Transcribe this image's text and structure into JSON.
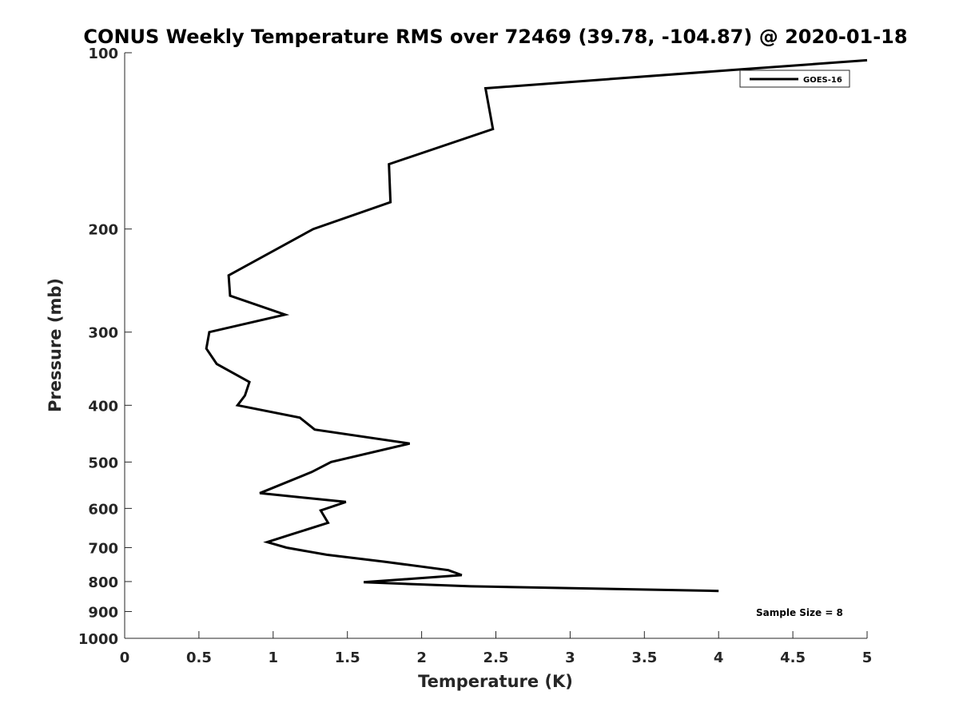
{
  "chart_data": {
    "type": "line",
    "title": "CONUS Weekly Temperature RMS over 72469 (39.78, -104.87) @ 2020-01-18",
    "xlabel": "Temperature (K)",
    "ylabel": "Pressure (mb)",
    "xlim": [
      0,
      5
    ],
    "ylim": [
      1000,
      100
    ],
    "y_scale": "log",
    "y_reversed": true,
    "grid": false,
    "legend_position": "top-right",
    "x_ticks": [
      "0",
      "0.5",
      "1",
      "1.5",
      "2",
      "2.5",
      "3",
      "3.5",
      "4",
      "4.5",
      "5"
    ],
    "y_ticks": [
      "100",
      "200",
      "300",
      "400",
      "500",
      "600",
      "700",
      "800",
      "900",
      "1000"
    ],
    "series": [
      {
        "name": "GOES-16",
        "color": "#000000",
        "points": [
          {
            "x": 5.0,
            "y": 103
          },
          {
            "x": 4.1,
            "y": 107
          },
          {
            "x": 2.43,
            "y": 115
          },
          {
            "x": 2.48,
            "y": 135
          },
          {
            "x": 1.78,
            "y": 155
          },
          {
            "x": 1.79,
            "y": 180
          },
          {
            "x": 1.27,
            "y": 200
          },
          {
            "x": 0.7,
            "y": 240
          },
          {
            "x": 0.71,
            "y": 260
          },
          {
            "x": 1.08,
            "y": 280
          },
          {
            "x": 0.57,
            "y": 300
          },
          {
            "x": 0.55,
            "y": 320
          },
          {
            "x": 0.62,
            "y": 340
          },
          {
            "x": 0.84,
            "y": 365
          },
          {
            "x": 0.81,
            "y": 385
          },
          {
            "x": 0.76,
            "y": 400
          },
          {
            "x": 1.18,
            "y": 420
          },
          {
            "x": 1.28,
            "y": 440
          },
          {
            "x": 1.92,
            "y": 465
          },
          {
            "x": 1.39,
            "y": 500
          },
          {
            "x": 1.26,
            "y": 520
          },
          {
            "x": 0.91,
            "y": 565
          },
          {
            "x": 1.49,
            "y": 585
          },
          {
            "x": 1.32,
            "y": 605
          },
          {
            "x": 1.37,
            "y": 635
          },
          {
            "x": 1.12,
            "y": 665
          },
          {
            "x": 0.96,
            "y": 685
          },
          {
            "x": 1.09,
            "y": 700
          },
          {
            "x": 1.36,
            "y": 720
          },
          {
            "x": 1.75,
            "y": 740
          },
          {
            "x": 2.18,
            "y": 765
          },
          {
            "x": 2.27,
            "y": 780
          },
          {
            "x": 1.61,
            "y": 802
          },
          {
            "x": 2.33,
            "y": 815
          },
          {
            "x": 4.0,
            "y": 830
          }
        ]
      }
    ],
    "annotation": "Sample Size = 8"
  }
}
